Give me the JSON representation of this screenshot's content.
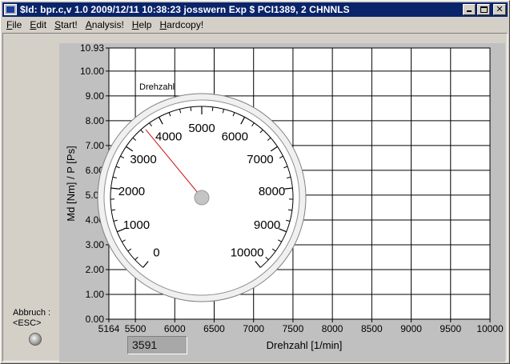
{
  "window": {
    "title": "$Id: bpr.c,v 1.0 2009/12/11 10:38:23 josswern Exp $ PCI1389, 2 CHNNLS",
    "minimize": "_",
    "maximize": "",
    "close": "✕"
  },
  "menu": [
    {
      "label": "File",
      "accel": "F",
      "rest": "ile"
    },
    {
      "label": "Edit",
      "accel": "E",
      "rest": "dit"
    },
    {
      "label": "Start!",
      "accel": "S",
      "rest": "tart!"
    },
    {
      "label": "Analysis!",
      "accel": "A",
      "rest": "nalysis!"
    },
    {
      "label": "Help",
      "accel": "H",
      "rest": "elp"
    },
    {
      "label": "Hardcopy!",
      "accel": "H",
      "rest": "ardcopy!"
    }
  ],
  "abort": {
    "line1": "Abbruch :",
    "line2": "<ESC>"
  },
  "readout": {
    "value": "3591"
  },
  "gauge": {
    "label": "Drehzahl",
    "min": 0,
    "max": 10000,
    "value": 3591,
    "tick_labels": [
      "0",
      "1000",
      "2000",
      "3000",
      "4000",
      "5000",
      "6000",
      "7000",
      "8000",
      "9000",
      "10000"
    ]
  },
  "chart_data": {
    "type": "line",
    "xlabel": "Drehzahl [1/min]",
    "ylabel": "Md [Nm] / P [Ps]",
    "xlim": [
      5164,
      10000
    ],
    "ylim": [
      0.0,
      10.93
    ],
    "x_ticks": [
      "5164",
      "5500",
      "6000",
      "6500",
      "7000",
      "7500",
      "8000",
      "8500",
      "9000",
      "9500",
      "10000"
    ],
    "y_ticks": [
      "0.00",
      "1.00",
      "2.00",
      "3.00",
      "4.00",
      "5.00",
      "6.00",
      "7.00",
      "8.00",
      "9.00",
      "10.00",
      "10.93"
    ],
    "grid": true,
    "series": []
  },
  "colors": {
    "plot_bg": "#ffffff",
    "frame": "#c0c0c0",
    "needle": "#d01010",
    "title_bar": "#0a246a"
  }
}
